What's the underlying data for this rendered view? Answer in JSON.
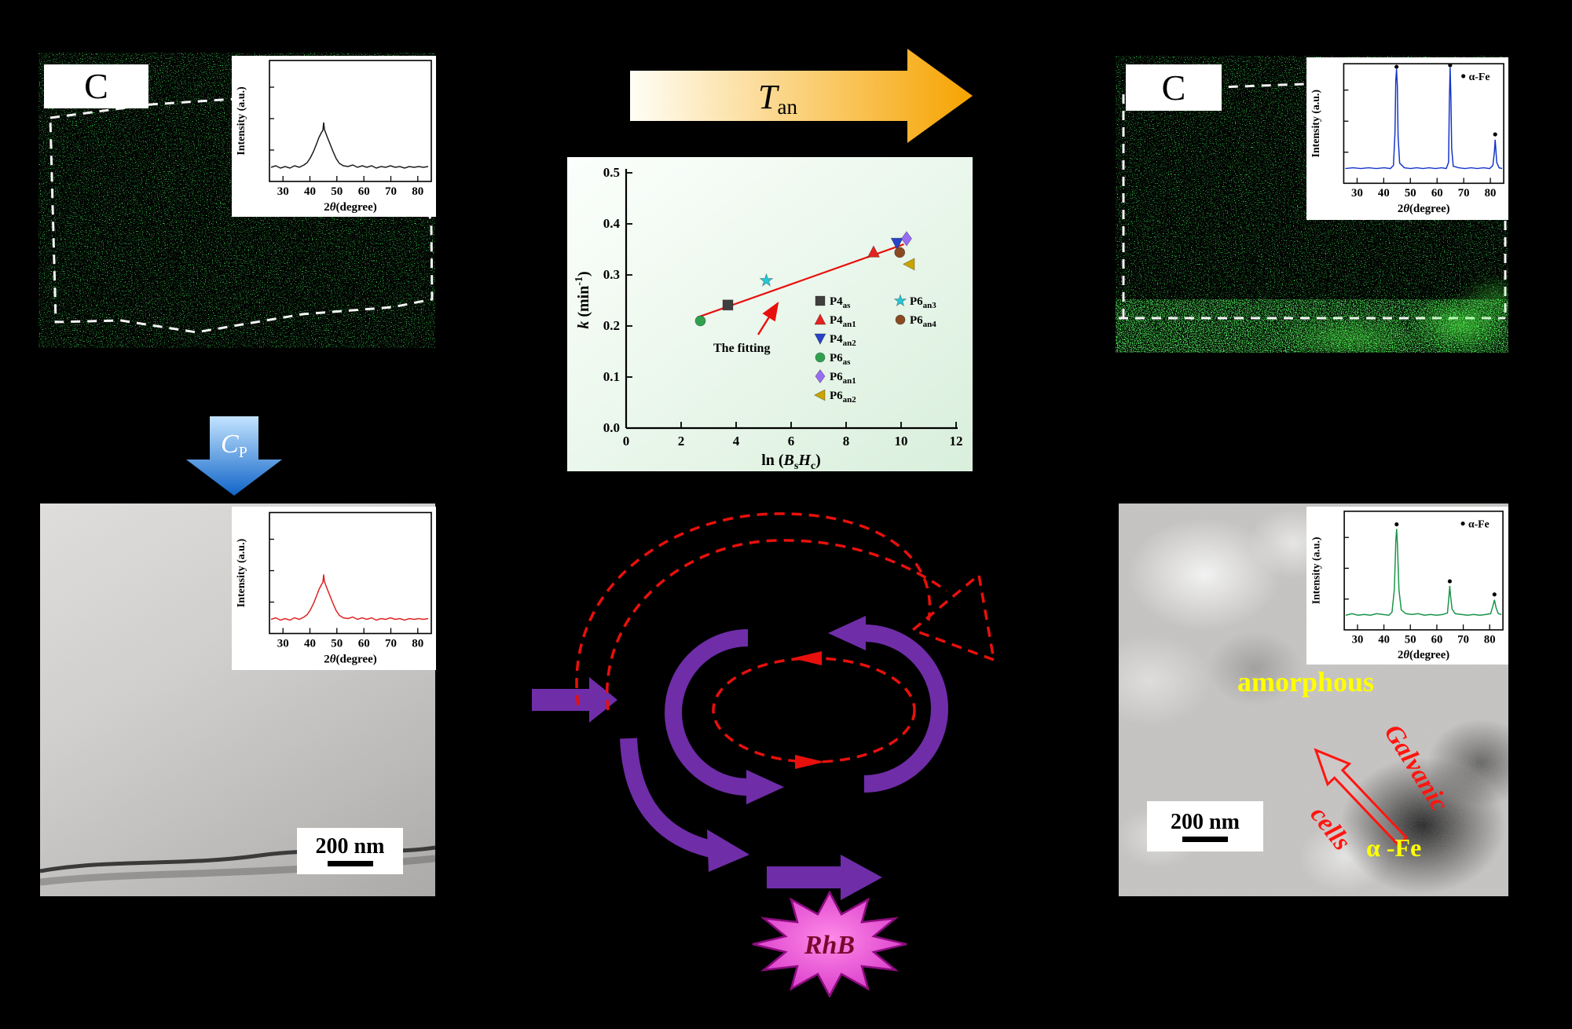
{
  "palette": {
    "background": "#000000",
    "speckle_green": "#2df23c",
    "arrow_orange": "#f6a300",
    "arrow_blue": "#1f7ae0",
    "cycle_purple": "#6f2da8",
    "cycle_red": "#e8100c",
    "rhb_magenta": "#e23bd3",
    "annotation_yellow": "#ffff00",
    "annotation_red": "#ff1510"
  },
  "top_left_panel": {
    "label": "C"
  },
  "top_right_panel": {
    "label": "C"
  },
  "process": {
    "tan_main": "T",
    "tan_sub": "an",
    "cp_main": "C",
    "cp_sub": "P"
  },
  "xrd": {
    "ylabel": "Intensity (a.u.)",
    "xlabel_num": "2",
    "xlabel_theta": "θ",
    "xlabel_rest": "(degree)",
    "ticks": [
      "30",
      "40",
      "50",
      "60",
      "70",
      "80"
    ],
    "alpha_fe": "α-Fe"
  },
  "xrd_colors": {
    "top_left": "#1a1a1a",
    "top_right": "#1535c8",
    "bottom_left": "#e02020",
    "bottom_right": "#189348"
  },
  "tem_left": {
    "scale_label": "200 nm"
  },
  "tem_right": {
    "scale_label": "200 nm",
    "amorphous_label": "amorphous",
    "galvanic_label": "Galvanic",
    "cells_label": "cells",
    "alpha_fe_label": "α -Fe"
  },
  "rhb_label": "RhB",
  "chart_data": {
    "type": "scatter",
    "title": "",
    "xlabel": "ln (BsHc)",
    "xlabel_parts": [
      "ln (",
      "B",
      "s",
      "H",
      "c",
      ")"
    ],
    "ylabel": "k (min⁻¹)",
    "ylabel_parts": [
      "k",
      " (min",
      "-1",
      ")"
    ],
    "xlim": [
      0,
      12
    ],
    "ylim": [
      0.0,
      0.5
    ],
    "xticks": [
      "0",
      "2",
      "4",
      "6",
      "8",
      "10",
      "12"
    ],
    "yticks": [
      "0.0",
      "0.1",
      "0.2",
      "0.3",
      "0.4",
      "0.5"
    ],
    "grid": false,
    "legend_position": "inside lower right",
    "annotation": "The fitting",
    "fit_line": {
      "x": [
        2.6,
        10.1
      ],
      "y": [
        0.217,
        0.36
      ],
      "color": "#e8100c"
    },
    "series": [
      {
        "name": "P4",
        "sub": "as",
        "marker": "square",
        "color": "#3f3f3f",
        "x": 3.7,
        "y": 0.241
      },
      {
        "name": "P4",
        "sub": "an1",
        "marker": "triangle-up",
        "color": "#e42320",
        "x": 9.0,
        "y": 0.345
      },
      {
        "name": "P4",
        "sub": "an2",
        "marker": "triangle-down",
        "color": "#2743c7",
        "x": 9.85,
        "y": 0.362
      },
      {
        "name": "P6",
        "sub": "as",
        "marker": "circle",
        "color": "#2fa14e",
        "x": 2.7,
        "y": 0.21
      },
      {
        "name": "P6",
        "sub": "an1",
        "marker": "diamond",
        "color": "#9a6cf5",
        "x": 10.2,
        "y": 0.371
      },
      {
        "name": "P6",
        "sub": "an2",
        "marker": "triangle-left",
        "color": "#c9a400",
        "x": 10.3,
        "y": 0.321
      },
      {
        "name": "P6",
        "sub": "an3",
        "marker": "star",
        "color": "#24c8d8",
        "x": 5.1,
        "y": 0.289
      },
      {
        "name": "P6",
        "sub": "an4",
        "marker": "circle",
        "color": "#8a4a21",
        "x": 9.95,
        "y": 0.344
      }
    ]
  }
}
